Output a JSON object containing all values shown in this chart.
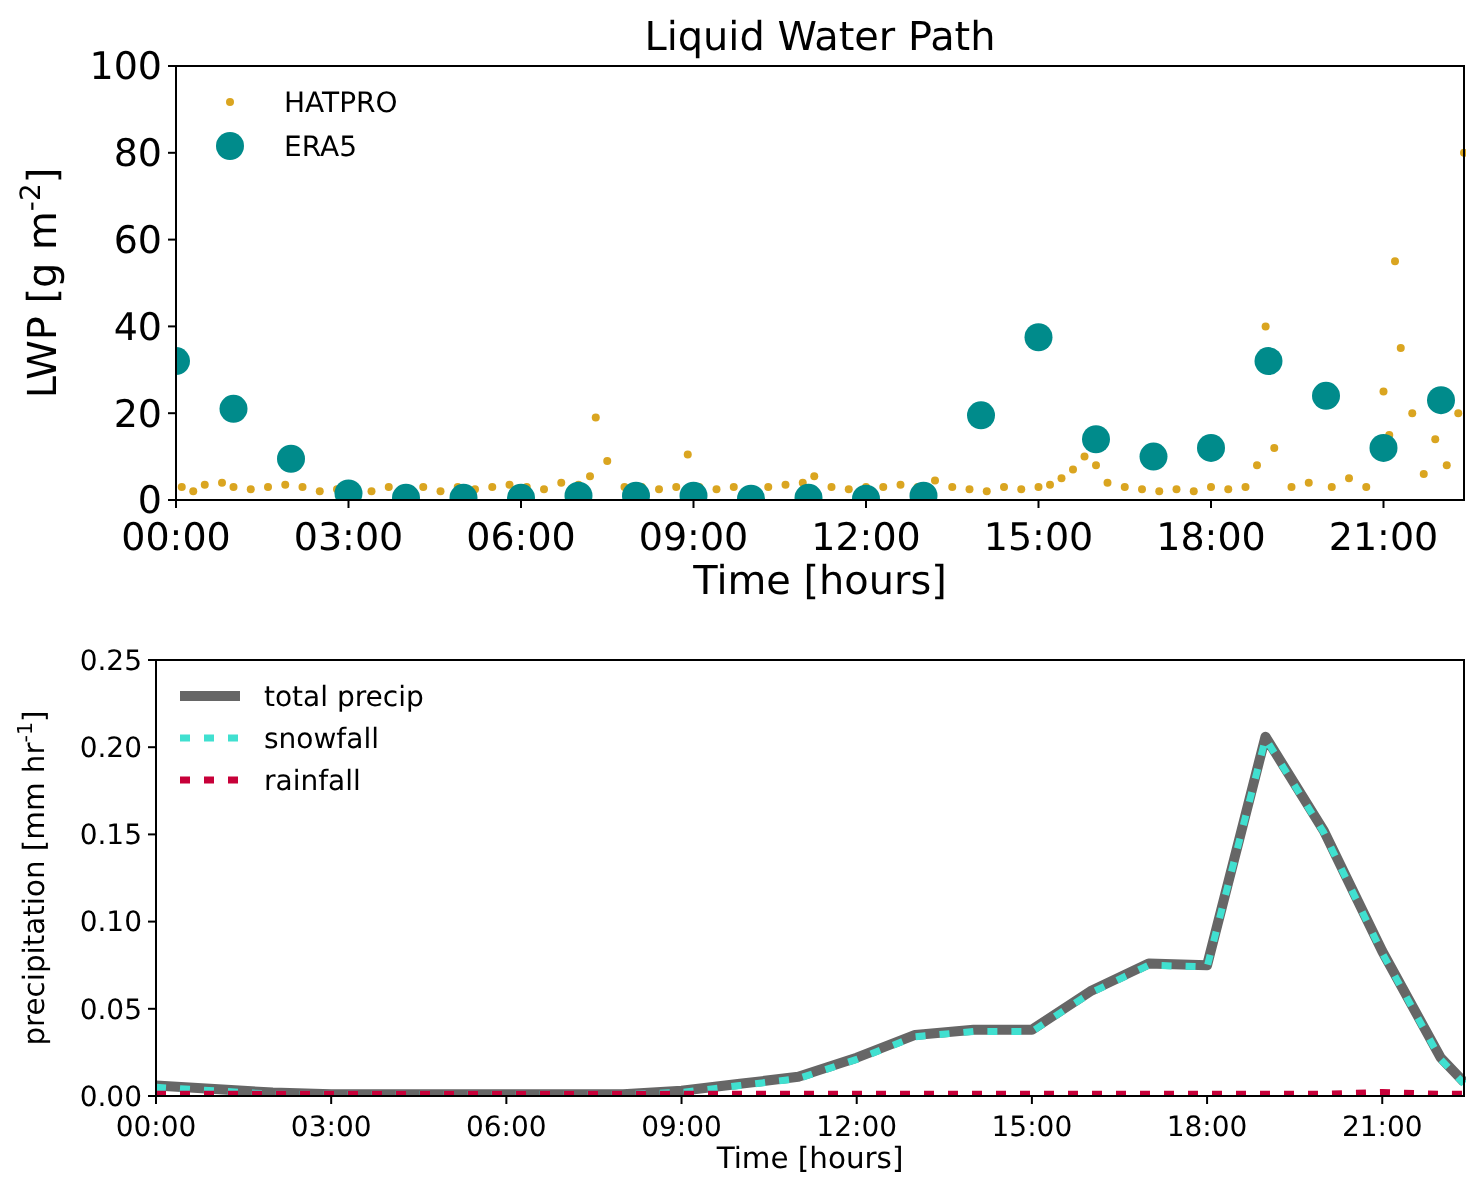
{
  "chart_data": [
    {
      "type": "scatter",
      "title": "Liquid Water Path",
      "xlabel": "Time [hours]",
      "ylabel": "LWP [g m$^{-2}$]",
      "xlim": [
        0,
        22.4
      ],
      "xticks": [
        {
          "value": 0,
          "label": "00:00"
        },
        {
          "value": 3,
          "label": "03:00"
        },
        {
          "value": 6,
          "label": "06:00"
        },
        {
          "value": 9,
          "label": "09:00"
        },
        {
          "value": 12,
          "label": "12:00"
        },
        {
          "value": 15,
          "label": "15:00"
        },
        {
          "value": 18,
          "label": "18:00"
        },
        {
          "value": 21,
          "label": "21:00"
        }
      ],
      "ylim": [
        0,
        100
      ],
      "yticks": [
        0,
        20,
        40,
        60,
        80,
        100
      ],
      "legend": "top left",
      "grid": false,
      "marker": "circle",
      "series": [
        {
          "name": "HATPRO",
          "color": "#daa520",
          "x": [
            0.1,
            0.3,
            0.5,
            0.8,
            1.0,
            1.3,
            1.6,
            1.9,
            2.2,
            2.5,
            2.8,
            3.4,
            3.7,
            4.3,
            4.6,
            4.9,
            5.2,
            5.5,
            5.8,
            6.1,
            6.4,
            6.7,
            7.0,
            7.2,
            7.3,
            7.5,
            7.8,
            8.1,
            8.4,
            8.7,
            8.9,
            9.1,
            9.4,
            9.7,
            10.3,
            10.6,
            10.9,
            11.1,
            11.4,
            11.7,
            12.0,
            12.3,
            12.6,
            12.9,
            13.2,
            13.5,
            13.8,
            14.1,
            14.4,
            14.7,
            15.0,
            15.2,
            15.4,
            15.6,
            15.8,
            16.0,
            16.2,
            16.5,
            16.8,
            17.1,
            17.4,
            17.7,
            18.0,
            18.3,
            18.6,
            18.8,
            18.95,
            19.1,
            19.4,
            19.7,
            20.1,
            20.4,
            20.7,
            21.0,
            21.1,
            21.2,
            21.3,
            21.5,
            21.7,
            21.9,
            22.1,
            22.3,
            22.4
          ],
          "values": [
            3,
            2,
            3.5,
            4,
            3,
            2.5,
            3,
            3.5,
            3,
            2,
            2.5,
            2,
            3,
            3,
            2,
            3,
            2.5,
            3,
            3.5,
            3,
            2.5,
            4,
            3.5,
            5.5,
            19,
            9,
            3,
            3,
            2.5,
            3,
            10.5,
            3,
            2.5,
            3,
            3,
            3.5,
            4,
            5.5,
            3,
            2.5,
            3,
            3,
            3.5,
            3,
            4.5,
            3,
            2.5,
            2,
            3,
            2.5,
            3,
            3.5,
            5,
            7,
            10,
            8,
            4,
            3,
            2.5,
            2,
            2.5,
            2,
            3,
            2.5,
            3,
            8,
            40,
            12,
            3,
            4,
            3,
            5,
            3,
            25,
            15,
            55,
            35,
            20,
            6,
            14,
            8,
            20,
            80
          ]
        },
        {
          "name": "ERA5",
          "color": "#008b8b",
          "x": [
            0,
            1,
            2,
            3,
            4,
            5,
            6,
            7,
            8,
            9,
            10,
            11,
            12,
            13,
            14,
            15,
            16,
            17,
            18,
            19,
            20,
            21,
            22
          ],
          "values": [
            32,
            21,
            9.5,
            1.5,
            0.5,
            0.5,
            0.5,
            1,
            1,
            1,
            0.3,
            0.5,
            0.3,
            1,
            19.5,
            37.5,
            14,
            10,
            12,
            32,
            24,
            12,
            23
          ]
        }
      ]
    },
    {
      "type": "line",
      "xlabel": "Time [hours]",
      "ylabel": "precipitation [mm hr$^{-1}$]",
      "xlim": [
        0,
        22.4
      ],
      "xticks": [
        {
          "value": 0,
          "label": "00:00"
        },
        {
          "value": 3,
          "label": "03:00"
        },
        {
          "value": 6,
          "label": "06:00"
        },
        {
          "value": 9,
          "label": "09:00"
        },
        {
          "value": 12,
          "label": "12:00"
        },
        {
          "value": 15,
          "label": "15:00"
        },
        {
          "value": 18,
          "label": "18:00"
        },
        {
          "value": 21,
          "label": "21:00"
        }
      ],
      "ylim": [
        0,
        0.25
      ],
      "yticks": [
        {
          "value": 0,
          "label": "0.00"
        },
        {
          "value": 0.05,
          "label": "0.05"
        },
        {
          "value": 0.1,
          "label": "0.10"
        },
        {
          "value": 0.15,
          "label": "0.15"
        },
        {
          "value": 0.2,
          "label": "0.20"
        },
        {
          "value": 0.25,
          "label": "0.25"
        }
      ],
      "legend": "top left",
      "grid": false,
      "x": [
        0,
        1,
        2,
        3,
        4,
        5,
        6,
        7,
        8,
        9,
        10,
        11,
        12,
        13,
        14,
        15,
        16,
        17,
        18,
        19,
        20,
        21,
        22,
        22.4
      ],
      "series": [
        {
          "name": "total precip",
          "color": "#666666",
          "line_style": "solid",
          "values": [
            0.006,
            0.004,
            0.002,
            0.001,
            0.001,
            0.001,
            0.001,
            0.001,
            0.001,
            0.003,
            0.007,
            0.011,
            0.022,
            0.035,
            0.038,
            0.038,
            0.06,
            0.076,
            0.075,
            0.206,
            0.152,
            0.083,
            0.022,
            0.008
          ]
        },
        {
          "name": "snowfall",
          "color": "#40e0d0",
          "line_style": "dotted",
          "values": [
            0.005,
            0.003,
            0.001,
            0.001,
            0.001,
            0.001,
            0.001,
            0.001,
            0.001,
            0.002,
            0.006,
            0.01,
            0.021,
            0.034,
            0.037,
            0.037,
            0.059,
            0.075,
            0.074,
            0.205,
            0.151,
            0.082,
            0.021,
            0.007
          ]
        },
        {
          "name": "rainfall",
          "color": "#c70039",
          "line_style": "dotted",
          "values": [
            0.001,
            0.001,
            0.001,
            0.001,
            0.001,
            0.001,
            0.001,
            0.001,
            0.001,
            0.001,
            0.001,
            0.001,
            0.001,
            0.001,
            0.001,
            0.001,
            0.001,
            0.001,
            0.001,
            0.001,
            0.001,
            0.002,
            0.001,
            0.001
          ]
        }
      ]
    }
  ]
}
